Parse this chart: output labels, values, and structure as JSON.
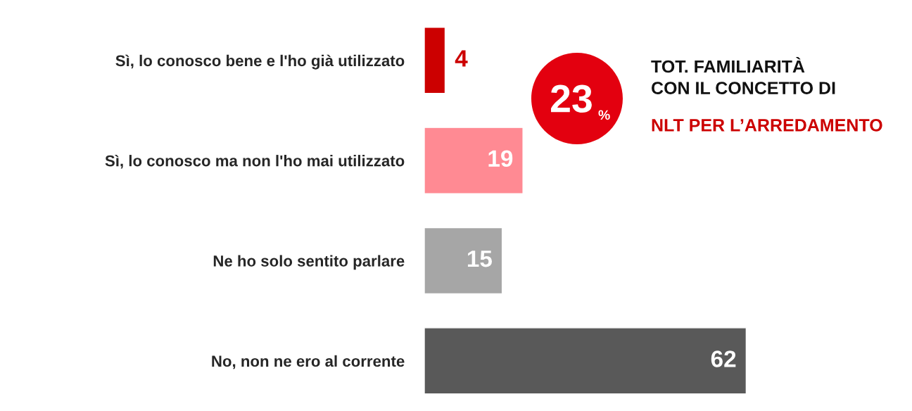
{
  "chart_data": {
    "type": "bar",
    "orientation": "horizontal",
    "categories": [
      "Sì, lo conosco bene e l'ho già utilizzato",
      "Sì, lo conosco ma non l'ho mai utilizzato",
      "Ne ho solo sentito parlare",
      "No, non ne ero al corrente"
    ],
    "values": [
      4,
      19,
      15,
      62
    ],
    "colors": [
      "#cc0000",
      "#ff8a93",
      "#a6a6a6",
      "#595959"
    ],
    "data_labels": true,
    "annotations": [
      "23%",
      "TOT. FAMILIARITÀ\nCON IL CONCETTO DI",
      "NLT PER L’ARREDAMENTO"
    ]
  }
}
